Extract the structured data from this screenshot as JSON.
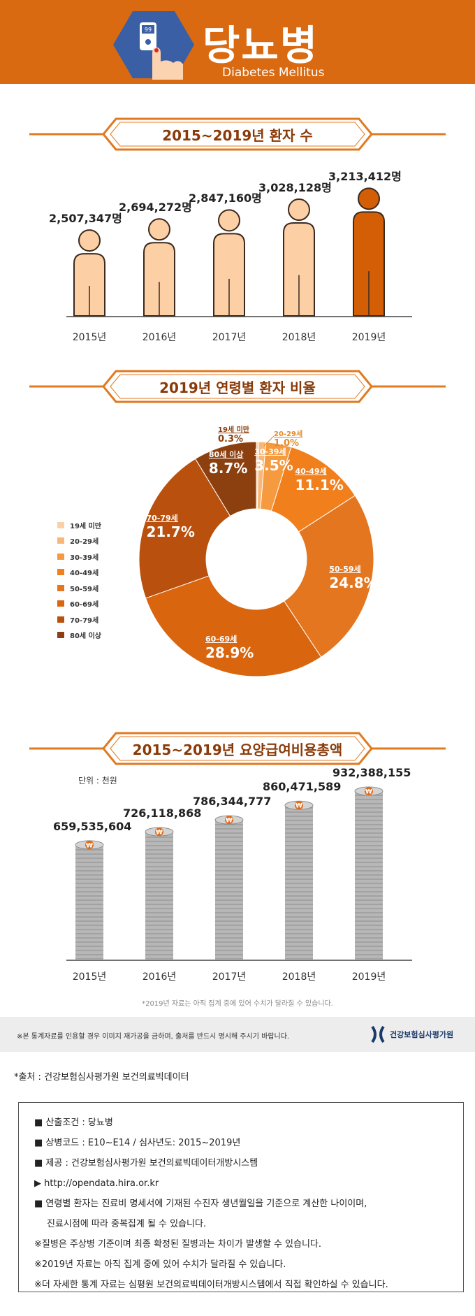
{
  "header": {
    "title": "당뇨병",
    "subtitle": "Diabetes Mellitus",
    "device_display": "99"
  },
  "section1": {
    "title": "2015~2019년 환자 수"
  },
  "section2": {
    "title": "2019년 연령별 환자 비율"
  },
  "section3": {
    "title": "2015~2019년 요양급여비용총액",
    "unit": "단위 : 천원"
  },
  "chart_data": [
    {
      "type": "bar",
      "title": "2015~2019년 환자 수",
      "categories": [
        "2015년",
        "2016년",
        "2017년",
        "2018년",
        "2019년"
      ],
      "values": [
        2507347,
        2694272,
        2847160,
        3028128,
        3213412
      ],
      "value_labels": [
        "2,507,347명",
        "2,694,272명",
        "2,847,160명",
        "3,028,128명",
        "3,213,412명"
      ],
      "highlight_index": 4,
      "colors": {
        "normal": "#fdcfa5",
        "highlight": "#d35e06",
        "outline": "#3a2a1e"
      }
    },
    {
      "type": "pie",
      "title": "2019년 연령별 환자 비율",
      "labels": [
        "19세 미만",
        "20-29세",
        "30-39세",
        "40-49세",
        "50-59세",
        "60-69세",
        "70-79세",
        "80세 이상"
      ],
      "values": [
        0.3,
        1.0,
        3.5,
        11.1,
        24.8,
        28.9,
        21.7,
        8.7
      ],
      "value_labels": [
        "0.3%",
        "1.0%",
        "3.5%",
        "11.1%",
        "24.8%",
        "28.9%",
        "21.7%",
        "8.7%"
      ],
      "colors": [
        "#fad1a6",
        "#f7b779",
        "#f59a3f",
        "#f07f1c",
        "#e3761f",
        "#d9650f",
        "#b9500d",
        "#8c400f"
      ]
    },
    {
      "type": "bar",
      "title": "2015~2019년 요양급여비용총액",
      "ylabel": "단위 : 천원",
      "categories": [
        "2015년",
        "2016년",
        "2017년",
        "2018년",
        "2019년"
      ],
      "values": [
        659535604,
        726118868,
        786344777,
        860471589,
        932388155
      ],
      "value_labels": [
        "659,535,604",
        "726,118,868",
        "786,344,777",
        "860,471,589",
        "932,388,155"
      ],
      "coin_symbol": "₩",
      "colors": {
        "coin": "#b7b7b7",
        "coin_edge": "#8e8e8e",
        "badge": "#e26a17"
      }
    }
  ],
  "footnote": "*2019년 자료는 아직 집계 중에 있어 수치가 달라질 수 있습니다.",
  "notice": {
    "text": "※본 통계자료를 인용할 경우 이미지 재가공을 금하며, 출처를 반드시 명시해 주시기 바랍니다.",
    "org_name": "건강보험심사평가원"
  },
  "source": "*출처 : 건강보험심사평가원 보건의료빅데이터",
  "info": {
    "l1": "■ 산출조건 : 당뇨병",
    "l2": "■ 상병코드 : E10~E14 / 심사년도: 2015~2019년",
    "l3": "■ 제공 : 건강보험심사평가원 보건의료빅데이터개방시스템",
    "l4": "▶ http://opendata.hira.or.kr",
    "l5": "■ 연령별 환자는 진료비 명세서에 기재된 수진자 생년월일을 기준으로 계산한 나이이며,",
    "l6": "진료시점에 따라 중복집계 될 수 있습니다.",
    "l7": "※질병은 주상병 기준이며 최종 확정된 질병과는 차이가 발생할 수 있습니다.",
    "l8": "※2019년 자료는 아직 집계 중에 있어 수치가 달라질 수 있습니다.",
    "l9": "※더 자세한 통계 자료는 심평원 보건의료빅데이터개방시스템에서 직접 확인하실 수 있습니다."
  }
}
